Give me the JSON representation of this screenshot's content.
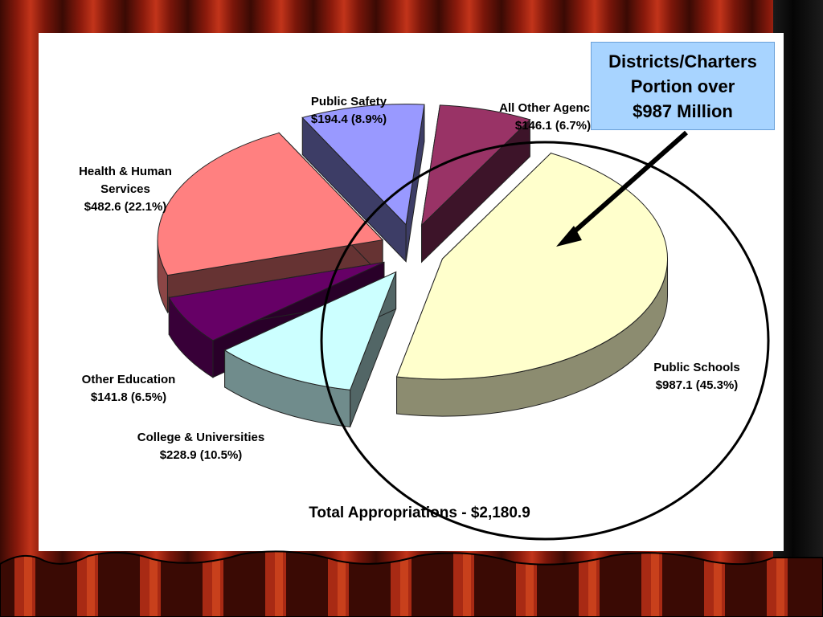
{
  "callout": {
    "line1": "Districts/Charters",
    "line2": "Portion over",
    "line3": "$987 Million"
  },
  "chart_data": {
    "type": "pie",
    "title": "Total Appropriations - $2,180.9",
    "exploded": true,
    "three_d": true,
    "slices": [
      {
        "name": "Public Schools",
        "value": 987.1,
        "percent": 45.3,
        "value_label": "$987.1  (45.3%)",
        "color": "#ffffcc"
      },
      {
        "name": "College & Universities",
        "value": 228.9,
        "percent": 10.5,
        "value_label": "$228.9  (10.5%)",
        "color": "#ccffff"
      },
      {
        "name": "Other Education",
        "value": 141.8,
        "percent": 6.5,
        "value_label": "$141.8  (6.5%)",
        "color": "#660066"
      },
      {
        "name": "Health & Human Services",
        "value": 482.6,
        "percent": 22.1,
        "value_label": "$482.6  (22.1%)",
        "color": "#ff8080"
      },
      {
        "name": "Public Safety",
        "value": 194.4,
        "percent": 8.9,
        "value_label": "$194.4  (8.9%)",
        "color": "#9999ff"
      },
      {
        "name": "All Other Agencies",
        "value": 146.1,
        "percent": 6.7,
        "value_label": "$146.1  (6.7%)",
        "color": "#993366"
      }
    ]
  }
}
